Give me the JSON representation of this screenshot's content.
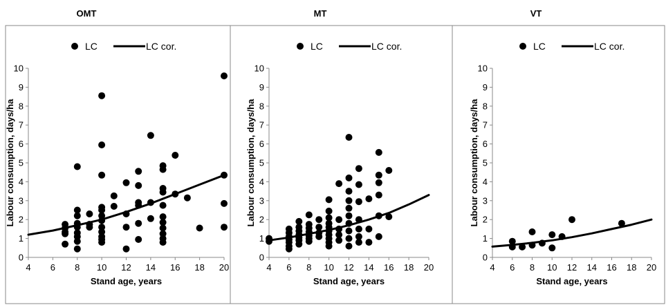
{
  "chart_data": [
    {
      "type": "scatter",
      "title": "OMT",
      "xlabel": "Stand age, years",
      "ylabel": "Labour consumption, days/ha",
      "xlim": [
        4,
        20
      ],
      "ylim": [
        0,
        10
      ],
      "xticks": [
        4,
        6,
        8,
        10,
        12,
        14,
        16,
        18,
        20
      ],
      "yticks": [
        0,
        1,
        2,
        3,
        4,
        5,
        6,
        7,
        8,
        9,
        10
      ],
      "legend": {
        "placement": "top",
        "entries": [
          "LC",
          "LC cor."
        ]
      },
      "grid": false,
      "series": [
        {
          "name": "LC",
          "kind": "points",
          "points": [
            [
              7,
              1.75
            ],
            [
              7,
              1.55
            ],
            [
              7,
              1.35
            ],
            [
              7,
              1.25
            ],
            [
              7,
              0.7
            ],
            [
              8,
              4.8
            ],
            [
              8,
              2.5
            ],
            [
              8,
              2.2
            ],
            [
              8,
              1.8
            ],
            [
              8,
              1.6
            ],
            [
              8,
              1.3
            ],
            [
              8,
              1.1
            ],
            [
              8,
              0.85
            ],
            [
              8,
              0.45
            ],
            [
              9,
              2.3
            ],
            [
              9,
              1.75
            ],
            [
              9,
              1.6
            ],
            [
              10,
              8.55
            ],
            [
              10,
              5.95
            ],
            [
              10,
              4.35
            ],
            [
              10,
              2.65
            ],
            [
              10,
              2.5
            ],
            [
              10,
              2.2
            ],
            [
              10,
              1.95
            ],
            [
              10,
              1.6
            ],
            [
              10,
              1.35
            ],
            [
              10,
              1.1
            ],
            [
              10,
              0.95
            ],
            [
              10,
              0.8
            ],
            [
              11,
              3.25
            ],
            [
              11,
              2.7
            ],
            [
              12,
              3.95
            ],
            [
              12,
              2.3
            ],
            [
              12,
              1.6
            ],
            [
              12,
              0.45
            ],
            [
              13,
              4.55
            ],
            [
              13,
              3.8
            ],
            [
              13,
              2.9
            ],
            [
              13,
              2.75
            ],
            [
              13,
              1.8
            ],
            [
              13,
              0.95
            ],
            [
              14,
              6.45
            ],
            [
              14,
              2.9
            ],
            [
              14,
              2.05
            ],
            [
              15,
              4.85
            ],
            [
              15,
              4.65
            ],
            [
              15,
              3.65
            ],
            [
              15,
              3.45
            ],
            [
              15,
              2.75
            ],
            [
              15,
              2.15
            ],
            [
              15,
              1.85
            ],
            [
              15,
              1.55
            ],
            [
              15,
              1.25
            ],
            [
              15,
              1.0
            ],
            [
              15,
              0.8
            ],
            [
              16,
              5.4
            ],
            [
              16,
              3.35
            ],
            [
              17,
              3.15
            ],
            [
              18,
              1.55
            ],
            [
              20,
              9.6
            ],
            [
              20,
              4.35
            ],
            [
              20,
              2.85
            ],
            [
              20,
              1.6
            ]
          ]
        },
        {
          "name": "LC cor.",
          "kind": "line",
          "curve": [
            [
              4,
              1.2
            ],
            [
              6,
              1.42
            ],
            [
              8,
              1.7
            ],
            [
              10,
              2.0
            ],
            [
              12,
              2.4
            ],
            [
              14,
              2.85
            ],
            [
              16,
              3.35
            ],
            [
              18,
              3.85
            ],
            [
              20,
              4.35
            ]
          ]
        }
      ]
    },
    {
      "type": "scatter",
      "title": "MT",
      "xlabel": "Stand age, years",
      "ylabel": "Labour consumption, days/ha",
      "xlim": [
        4,
        20
      ],
      "ylim": [
        0,
        10
      ],
      "xticks": [
        4,
        6,
        8,
        10,
        12,
        14,
        16,
        18,
        20
      ],
      "yticks": [
        0,
        1,
        2,
        3,
        4,
        5,
        6,
        7,
        8,
        9,
        10
      ],
      "legend": {
        "placement": "top",
        "entries": [
          "LC",
          "LC cor."
        ]
      },
      "grid": false,
      "series": [
        {
          "name": "LC",
          "kind": "points",
          "points": [
            [
              4,
              1.0
            ],
            [
              4,
              0.85
            ],
            [
              6,
              1.5
            ],
            [
              6,
              1.3
            ],
            [
              6,
              1.1
            ],
            [
              6,
              0.95
            ],
            [
              6,
              0.8
            ],
            [
              6,
              0.6
            ],
            [
              6,
              0.45
            ],
            [
              7,
              1.9
            ],
            [
              7,
              1.6
            ],
            [
              7,
              1.4
            ],
            [
              7,
              1.2
            ],
            [
              7,
              1.05
            ],
            [
              7,
              0.9
            ],
            [
              7,
              0.7
            ],
            [
              8,
              2.25
            ],
            [
              8,
              1.75
            ],
            [
              8,
              1.55
            ],
            [
              8,
              1.35
            ],
            [
              8,
              1.15
            ],
            [
              8,
              1.0
            ],
            [
              8,
              0.85
            ],
            [
              9,
              2.0
            ],
            [
              9,
              1.6
            ],
            [
              9,
              1.3
            ],
            [
              9,
              1.1
            ],
            [
              10,
              3.05
            ],
            [
              10,
              2.45
            ],
            [
              10,
              2.1
            ],
            [
              10,
              1.8
            ],
            [
              10,
              1.6
            ],
            [
              10,
              1.4
            ],
            [
              10,
              1.2
            ],
            [
              10,
              1.0
            ],
            [
              10,
              0.8
            ],
            [
              10,
              0.6
            ],
            [
              11,
              3.9
            ],
            [
              11,
              2.0
            ],
            [
              11,
              1.5
            ],
            [
              11,
              1.2
            ],
            [
              11,
              0.9
            ],
            [
              12,
              6.35
            ],
            [
              12,
              4.2
            ],
            [
              12,
              3.5
            ],
            [
              12,
              3.0
            ],
            [
              12,
              2.6
            ],
            [
              12,
              2.2
            ],
            [
              12,
              1.8
            ],
            [
              12,
              1.4
            ],
            [
              12,
              1.0
            ],
            [
              12,
              0.6
            ],
            [
              13,
              4.7
            ],
            [
              13,
              3.85
            ],
            [
              13,
              2.95
            ],
            [
              13,
              2.0
            ],
            [
              13,
              1.5
            ],
            [
              13,
              1.1
            ],
            [
              13,
              0.8
            ],
            [
              14,
              3.1
            ],
            [
              14,
              1.5
            ],
            [
              14,
              0.8
            ],
            [
              15,
              5.55
            ],
            [
              15,
              4.35
            ],
            [
              15,
              3.95
            ],
            [
              15,
              3.3
            ],
            [
              15,
              2.2
            ],
            [
              15,
              1.1
            ],
            [
              16,
              4.6
            ],
            [
              16,
              2.15
            ]
          ]
        },
        {
          "name": "LC cor.",
          "kind": "line",
          "curve": [
            [
              4,
              0.9
            ],
            [
              6,
              1.05
            ],
            [
              8,
              1.25
            ],
            [
              10,
              1.45
            ],
            [
              12,
              1.7
            ],
            [
              14,
              2.0
            ],
            [
              16,
              2.35
            ],
            [
              18,
              2.8
            ],
            [
              20,
              3.3
            ]
          ]
        }
      ]
    },
    {
      "type": "scatter",
      "title": "VT",
      "xlabel": "Stand age, years",
      "ylabel": "Labour consumption, days/ha",
      "xlim": [
        4,
        20
      ],
      "ylim": [
        0,
        10
      ],
      "xticks": [
        4,
        6,
        8,
        10,
        12,
        14,
        16,
        18,
        20
      ],
      "yticks": [
        0,
        1,
        2,
        3,
        4,
        5,
        6,
        7,
        8,
        9,
        10
      ],
      "legend": {
        "placement": "top",
        "entries": [
          "LC",
          "LC cor."
        ]
      },
      "grid": false,
      "series": [
        {
          "name": "LC",
          "kind": "points",
          "points": [
            [
              6,
              0.85
            ],
            [
              6,
              0.55
            ],
            [
              7,
              0.55
            ],
            [
              8,
              1.35
            ],
            [
              8,
              0.65
            ],
            [
              9,
              0.75
            ],
            [
              10,
              1.2
            ],
            [
              10,
              0.5
            ],
            [
              11,
              1.1
            ],
            [
              12,
              2.0
            ],
            [
              17,
              1.8
            ]
          ]
        },
        {
          "name": "LC cor.",
          "kind": "line",
          "curve": [
            [
              4,
              0.57
            ],
            [
              6,
              0.66
            ],
            [
              8,
              0.77
            ],
            [
              10,
              0.9
            ],
            [
              12,
              1.07
            ],
            [
              14,
              1.27
            ],
            [
              16,
              1.5
            ],
            [
              18,
              1.73
            ],
            [
              20,
              2.0
            ]
          ]
        }
      ]
    }
  ]
}
